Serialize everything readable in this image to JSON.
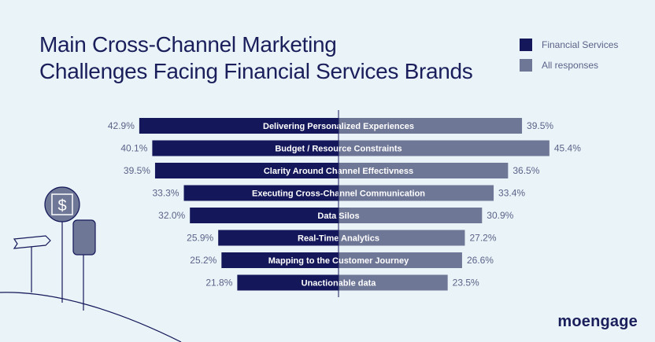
{
  "title_line1": "Main Cross-Channel Marketing",
  "title_line2": "Challenges Facing Financial Services Brands",
  "legend": [
    {
      "label": "Financial Services",
      "color": "#14185a"
    },
    {
      "label": "All responses",
      "color": "#6f7797"
    }
  ],
  "logo": "moengage",
  "colors": {
    "background": "#eaf4f8",
    "financial_services": "#14185a",
    "all_responses": "#6f7797",
    "value_text": "#5b6288"
  },
  "chart_data": {
    "type": "bar",
    "orientation": "horizontal-diverging",
    "categories": [
      "Delivering Personalized Experiences",
      "Budget / Resource Constraints",
      "Clarity Around Channel Effectivness",
      "Executing Cross-Channel Communication",
      "Data Silos",
      "Real-Time Analytics",
      "Mapping to the Customer Journey",
      "Unactionable data"
    ],
    "series": [
      {
        "name": "Financial Services",
        "values": [
          42.9,
          40.1,
          39.5,
          33.3,
          32.0,
          25.9,
          25.2,
          21.8
        ],
        "labels": [
          "42.9%",
          "40.1%",
          "39.5%",
          "33.3%",
          "32.0%",
          "25.9%",
          "25.2%",
          "21.8%"
        ]
      },
      {
        "name": "All responses",
        "values": [
          39.5,
          45.4,
          36.5,
          33.4,
          30.9,
          27.2,
          26.6,
          23.5
        ],
        "labels": [
          "39.5%",
          "45.4%",
          "36.5%",
          "33.4%",
          "30.9%",
          "27.2%",
          "26.6%",
          "23.5%"
        ]
      }
    ],
    "title": "Main Cross-Channel Marketing Challenges Facing Financial Services Brands",
    "xlabel": "",
    "ylabel": "",
    "legend_position": "top-right",
    "grid": false
  }
}
